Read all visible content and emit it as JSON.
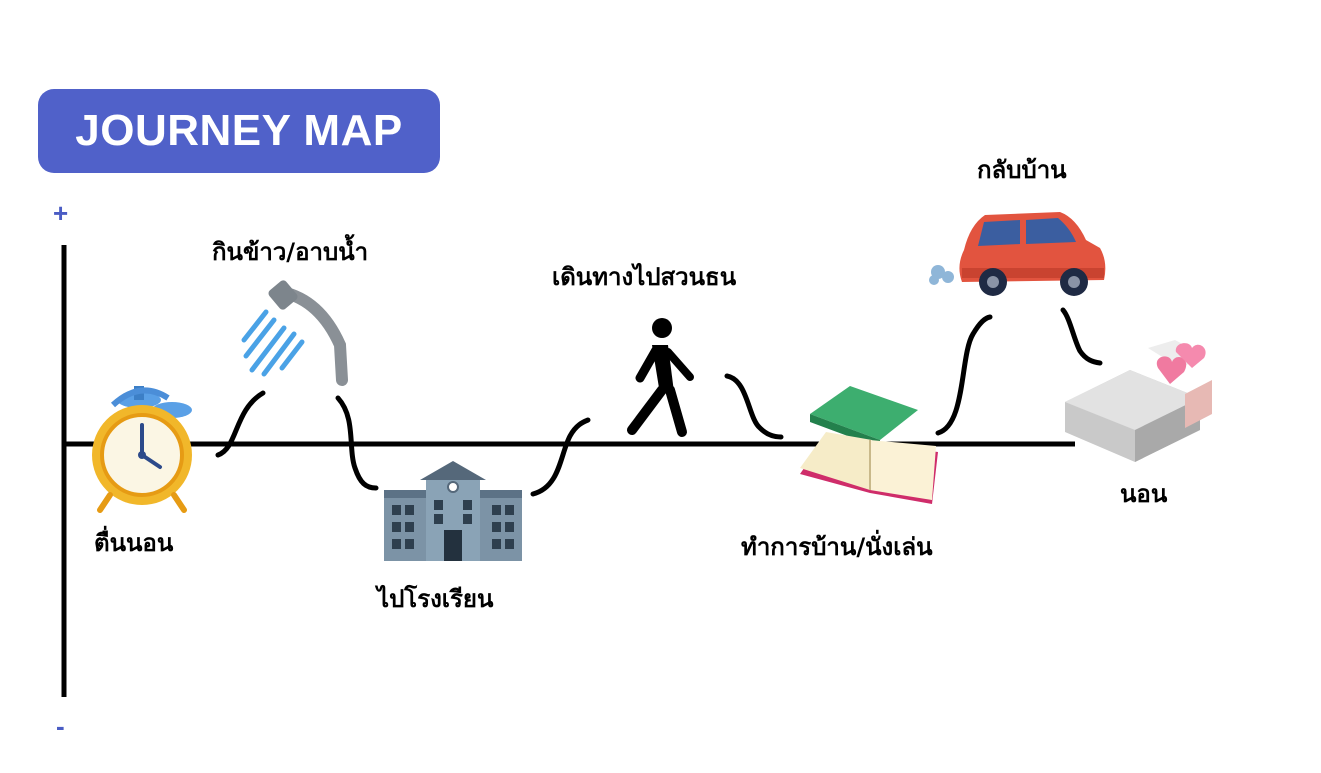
{
  "title": "JOURNEY MAP",
  "axis": {
    "plus": "+",
    "minus": "-"
  },
  "steps": [
    {
      "label": "ตื่นนอน",
      "icon": "alarm-clock-icon"
    },
    {
      "label": "กินข้าว/อาบน้ำ",
      "icon": "shower-icon"
    },
    {
      "label": "ไปโรงเรียน",
      "icon": "school-building-icon"
    },
    {
      "label": "เดินทางไปสวนธน",
      "icon": "walking-person-icon"
    },
    {
      "label": "ทำการบ้าน/นั่งเล่น",
      "icon": "books-icon"
    },
    {
      "label": "กลับบ้าน",
      "icon": "car-icon"
    },
    {
      "label": "นอน",
      "icon": "bed-icon"
    }
  ],
  "colors": {
    "title_bg": "#5061c9",
    "title_text": "#ffffff",
    "axis_marks": "#4a5cc4",
    "lines": "#000000"
  }
}
